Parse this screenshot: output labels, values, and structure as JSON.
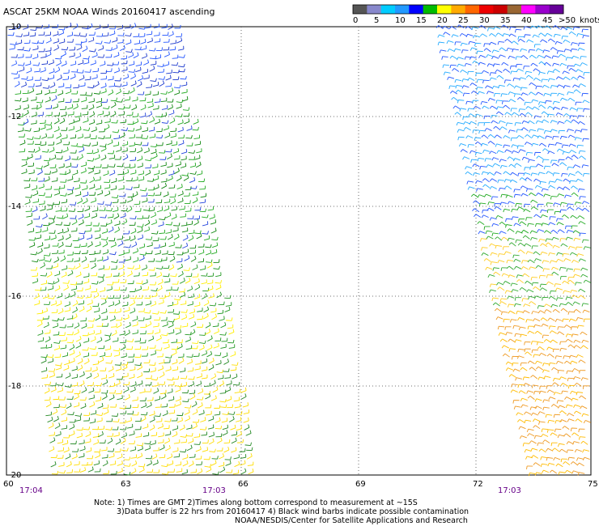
{
  "title": "ASCAT 25KM NOAA Winds 20160417 ascending",
  "legend": {
    "labels": [
      "0",
      "5",
      "10",
      "15",
      "20",
      "25",
      "30",
      "35",
      "40",
      "45",
      "50"
    ],
    "unit": "knots",
    "colors": [
      "#555555",
      "#8888cc",
      "#00ccff",
      "#2299ff",
      "#0000ff",
      "#00bb00",
      "#ffff00",
      "#ffaa00",
      "#ff6600",
      "#ee0000",
      "#cc0000",
      "#996633",
      "#ff00ff",
      "#9900cc",
      "#660099"
    ]
  },
  "map": {
    "lat_labels": [
      "-10",
      "-12",
      "-14",
      "-16",
      "-18",
      "-20"
    ],
    "lon_labels": [
      "60",
      "63",
      "66",
      "69",
      "72",
      "75"
    ],
    "swath_times": [
      "17:04",
      "17:03",
      "17:03"
    ]
  },
  "swaths": [
    {
      "name": "west",
      "time": "17:04"
    },
    {
      "name": "east",
      "time": "17:03"
    }
  ],
  "notes": {
    "line1": "Note: 1) Times are GMT 2)Times along bottom correspond to measurement at ~15S",
    "line2": "3)Data buffer is 22 hrs from 20160417 4) Black wind barbs indicate possible contamination",
    "line3": "NOAA/NESDIS/Center for Satellite Applications and Research"
  }
}
